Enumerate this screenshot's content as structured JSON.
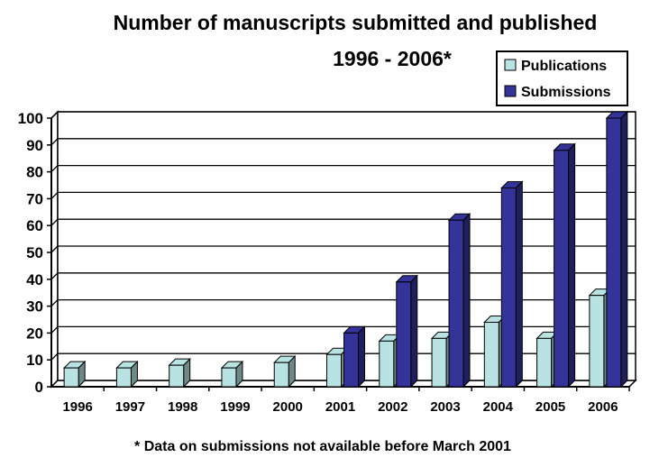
{
  "chart_data": {
    "type": "bar",
    "title": "Number of manuscripts submitted and published",
    "subtitle": "1996 - 2006*",
    "categories": [
      "1996",
      "1997",
      "1998",
      "1999",
      "2000",
      "2001",
      "2002",
      "2003",
      "2004",
      "2005",
      "2006"
    ],
    "series": [
      {
        "name": "Publications",
        "color": "#b9e3e3",
        "values": [
          7,
          7,
          8,
          7,
          9,
          12,
          17,
          18,
          24,
          18,
          34
        ]
      },
      {
        "name": "Submissions",
        "color": "#33339a",
        "values": [
          0,
          0,
          0,
          0,
          0,
          20,
          39,
          62,
          74,
          88,
          100
        ]
      }
    ],
    "ylim": [
      0,
      100
    ],
    "yticks": [
      0,
      10,
      20,
      30,
      40,
      50,
      60,
      70,
      80,
      90,
      100
    ],
    "grid": true,
    "legend": "top-right",
    "footnote": "* Data on submissions not available before March 2001"
  }
}
